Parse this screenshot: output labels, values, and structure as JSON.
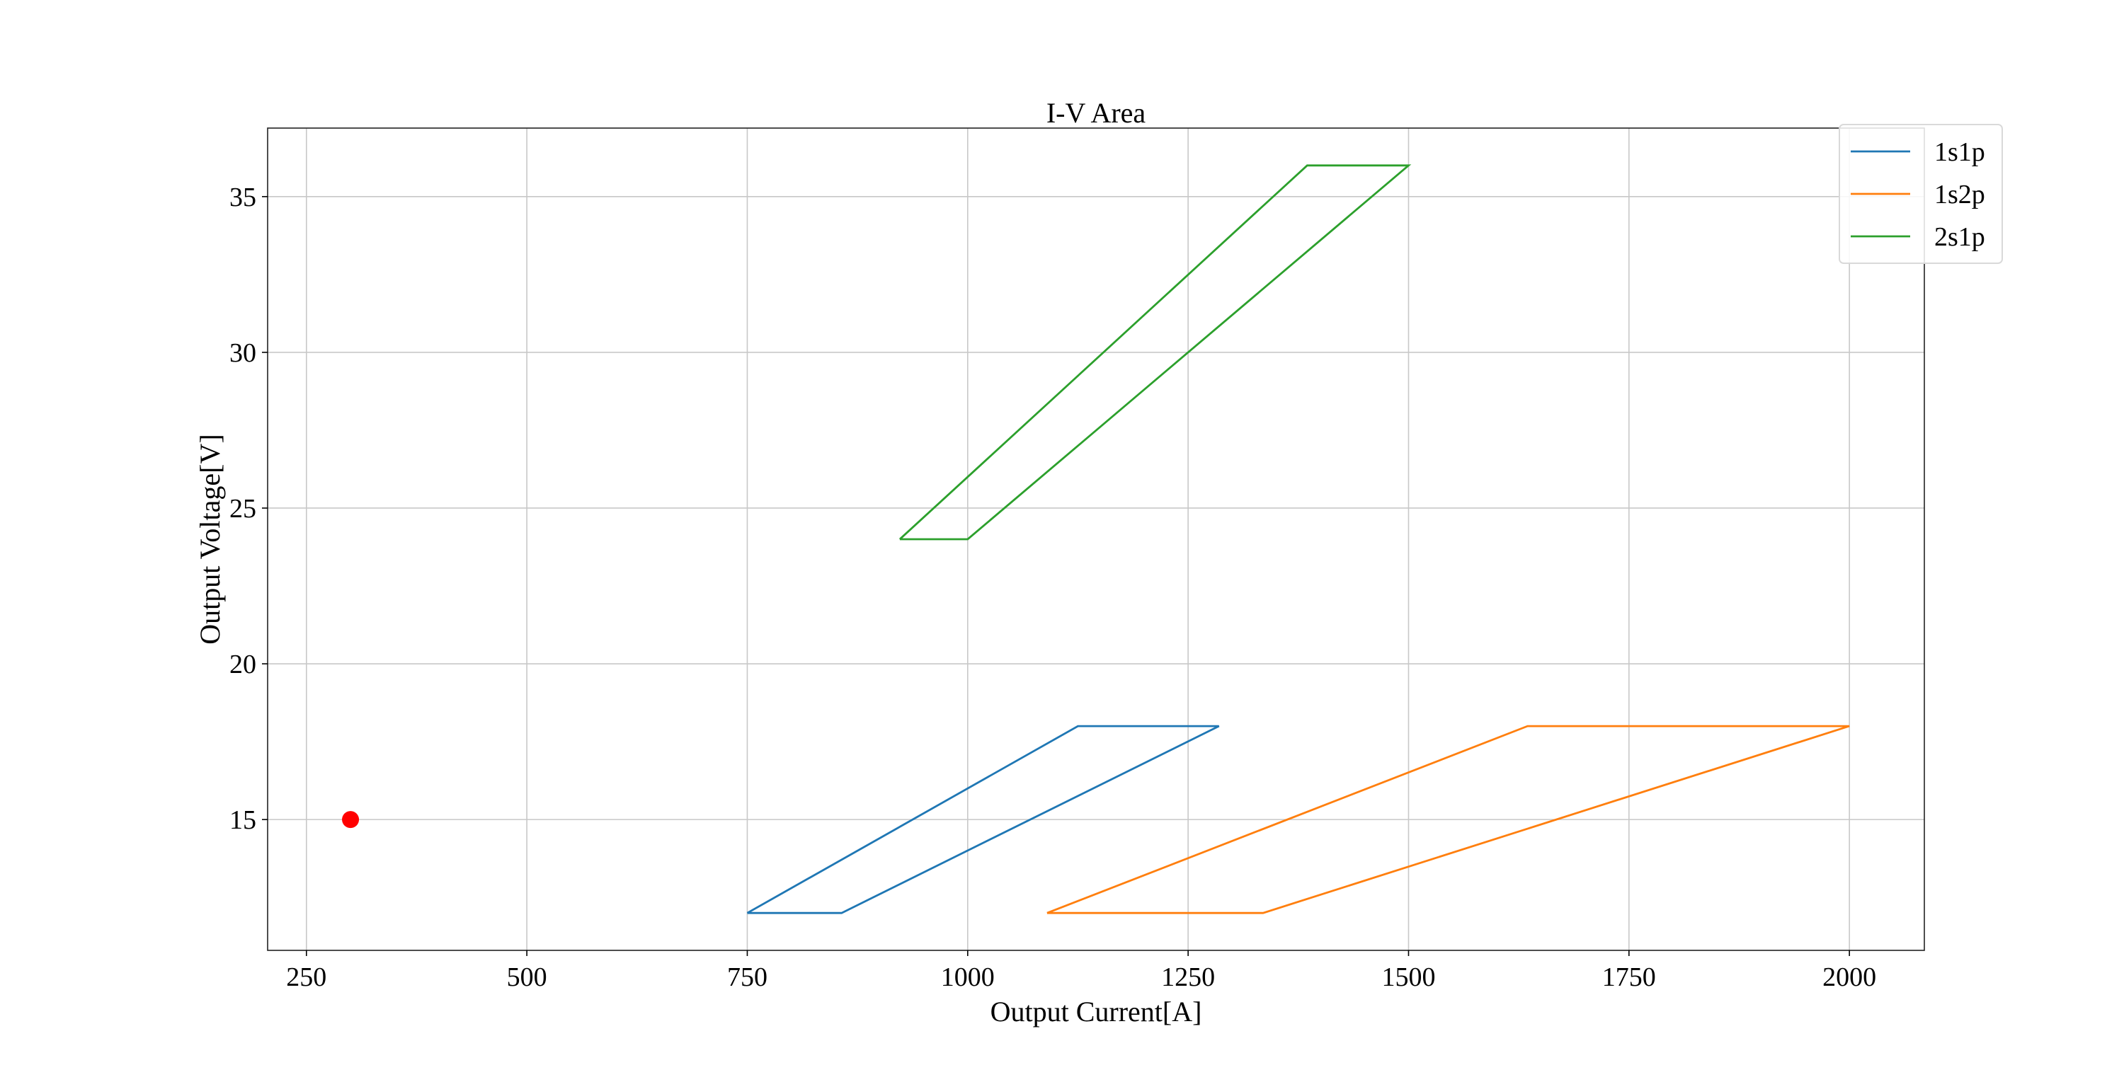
{
  "chart_data": {
    "type": "line",
    "title": "I-V Area",
    "xlabel": "Output Current[A]",
    "ylabel": "Output Voltage[V]",
    "xlim": [
      206,
      2085
    ],
    "ylim": [
      10.8,
      37.2
    ],
    "xticks": [
      250,
      500,
      750,
      1000,
      1250,
      1500,
      1750,
      2000
    ],
    "yticks": [
      15,
      20,
      25,
      30,
      35
    ],
    "grid": true,
    "legend_position": "top-right",
    "series": [
      {
        "name": "1s1p",
        "color": "#1f77b4",
        "points": [
          [
            750,
            12
          ],
          [
            857,
            12
          ],
          [
            1285,
            18
          ],
          [
            1125,
            18
          ],
          [
            750,
            12
          ]
        ]
      },
      {
        "name": "1s2p",
        "color": "#ff7f0e",
        "points": [
          [
            1090,
            12
          ],
          [
            1335,
            12
          ],
          [
            2000,
            18
          ],
          [
            1635,
            18
          ],
          [
            1090,
            12
          ]
        ]
      },
      {
        "name": "2s1p",
        "color": "#2ca02c",
        "points": [
          [
            923,
            24
          ],
          [
            1000,
            24
          ],
          [
            1500,
            36
          ],
          [
            1385,
            36
          ],
          [
            923,
            24
          ]
        ]
      }
    ],
    "markers": [
      {
        "x": 300,
        "y": 15,
        "color": "#ff0000"
      }
    ]
  }
}
